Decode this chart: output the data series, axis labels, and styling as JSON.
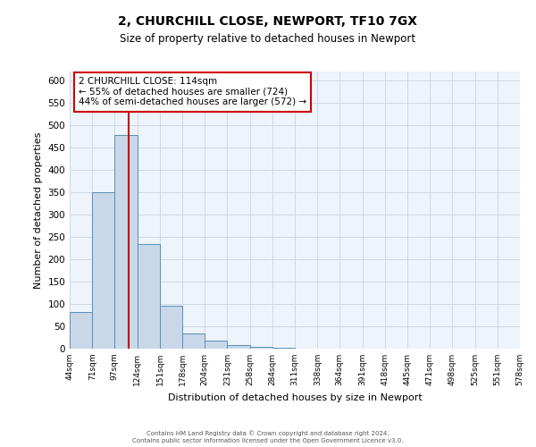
{
  "title_line1": "2, CHURCHILL CLOSE, NEWPORT, TF10 7GX",
  "title_line2": "Size of property relative to detached houses in Newport",
  "xlabel": "Distribution of detached houses by size in Newport",
  "ylabel": "Number of detached properties",
  "bin_edges": [
    44,
    71,
    97,
    124,
    151,
    178,
    204,
    231,
    258,
    284,
    311,
    338,
    364,
    391,
    418,
    445,
    471,
    498,
    525,
    551,
    578
  ],
  "bar_heights": [
    83,
    350,
    478,
    235,
    97,
    35,
    18,
    8,
    5,
    3,
    0,
    0,
    0,
    1,
    0,
    0,
    0,
    0,
    1,
    0
  ],
  "bar_color": "#c8d8e8",
  "bar_edge_color": "#5b8db8",
  "property_line_x": 114,
  "property_line_color": "#cc0000",
  "ylim": [
    0,
    620
  ],
  "yticks": [
    0,
    50,
    100,
    150,
    200,
    250,
    300,
    350,
    400,
    450,
    500,
    550,
    600
  ],
  "background_color": "#eef4fb",
  "grid_color": "#c8d4e0",
  "ann_line1": "2 CHURCHILL CLOSE: 114sqm",
  "ann_line2": "← 55% of detached houses are smaller (724)",
  "ann_line3": "44% of semi-detached houses are larger (572) →",
  "footer_line1": "Contains HM Land Registry data © Crown copyright and database right 2024.",
  "footer_line2": "Contains public sector information licensed under the Open Government Licence v3.0."
}
